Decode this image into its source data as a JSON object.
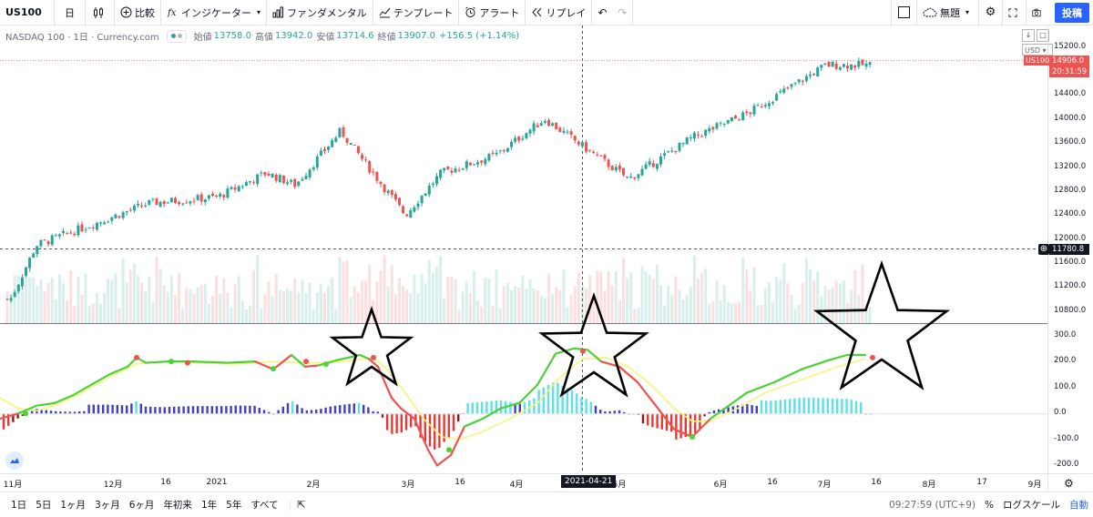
{
  "toolbar": {
    "symbol": "US100",
    "interval": "日",
    "compare": "比較",
    "indicators": "インジケーター",
    "fundamentals": "ファンダメンタル",
    "templates": "テンプレート",
    "alert": "アラート",
    "replay": "リプレイ",
    "layout_name": "無題",
    "publish": "投稿"
  },
  "legend": {
    "title": "NASDAQ 100 · 1日 · Currency.com",
    "open_label": "始値",
    "open": "13758.0",
    "high_label": "高値",
    "high": "13942.0",
    "low_label": "安値",
    "low": "13714.6",
    "close_label": "終値",
    "close": "13907.0",
    "change": "+156.5 (+1.14%)"
  },
  "price_axis": {
    "currency": "USD",
    "labels": [
      "15200.0",
      "14800.0",
      "14400.0",
      "14000.0",
      "13600.0",
      "13200.0",
      "12800.0",
      "12400.0",
      "12000.0",
      "11600.0",
      "11200.0",
      "10800.0"
    ],
    "osc_labels": [
      "300.0",
      "200.0",
      "100.0",
      "0.0",
      "-100.0",
      "-200.0"
    ],
    "last_price": "14906.0",
    "countdown": "20:31:59",
    "symbol_tag": "US100",
    "crosshair_price": "11780.8"
  },
  "time_axis": {
    "months": [
      "11月",
      "12月",
      "16",
      "2021",
      "2月",
      "3月",
      "16",
      "4月",
      "5月",
      "6月",
      "16",
      "7月",
      "16",
      "8月",
      "17",
      "9月"
    ],
    "crosshair_date": "2021-04-21"
  },
  "bottom": {
    "periods": [
      "1日",
      "5日",
      "1ヶ月",
      "3ヶ月",
      "6ヶ月",
      "年初来",
      "1年",
      "5年",
      "すべて"
    ],
    "clock": "09:27:59 (UTC+9)",
    "percent": "%",
    "log_scale": "ログスケール",
    "auto": "自動"
  },
  "colors": {
    "up": "#26a69a",
    "down": "#ef5350",
    "accent": "#2962ff",
    "macd_fast": "#4cd137",
    "macd_slow": "#f5f57a"
  },
  "chart_data": {
    "type": "candlestick",
    "x_range": [
      "2020-11-01",
      "2021-09-15"
    ],
    "ylim": [
      10600,
      15300
    ],
    "approx_close_path": [
      {
        "date": "2020-11-02",
        "close": 11000
      },
      {
        "date": "2020-11-10",
        "close": 11900
      },
      {
        "date": "2020-11-30",
        "close": 12300
      },
      {
        "date": "2020-12-15",
        "close": 12600
      },
      {
        "date": "2021-01-05",
        "close": 12700
      },
      {
        "date": "2021-01-20",
        "close": 13100
      },
      {
        "date": "2021-01-29",
        "close": 12900
      },
      {
        "date": "2021-02-12",
        "close": 13800
      },
      {
        "date": "2021-03-04",
        "close": 12400
      },
      {
        "date": "2021-03-15",
        "close": 13100
      },
      {
        "date": "2021-04-01",
        "close": 13400
      },
      {
        "date": "2021-04-16",
        "close": 14000
      },
      {
        "date": "2021-05-12",
        "close": 13000
      },
      {
        "date": "2021-06-01",
        "close": 13700
      },
      {
        "date": "2021-06-18",
        "close": 14100
      },
      {
        "date": "2021-07-12",
        "close": 14900
      }
    ],
    "oscillator_ylim": [
      -230,
      330
    ]
  }
}
